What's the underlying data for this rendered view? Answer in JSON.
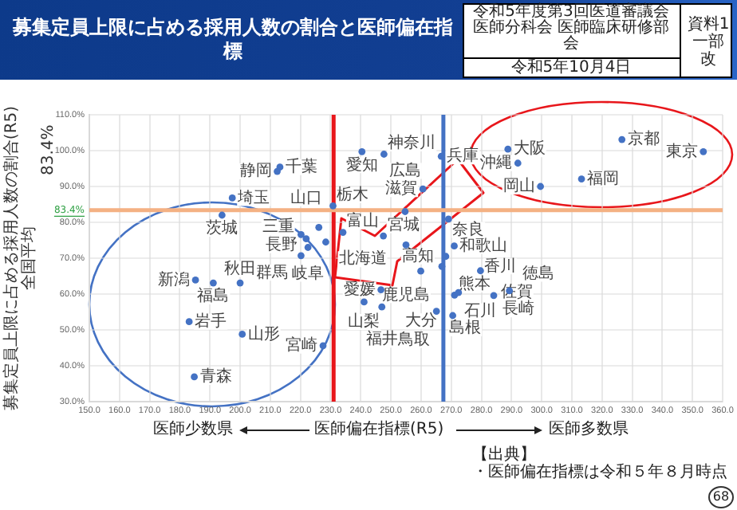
{
  "chart_data": {
    "type": "scatter",
    "title": "募集定員上限に占める採用人数の割合と医師偏在指標",
    "xlabel": "医師偏在指標(R5)",
    "ylabel": "募集定員上限に占める採用人数の割合(R5) 全国平均",
    "x": [
      213.2,
      212.3,
      197.4,
      194.0,
      230.8,
      226.1,
      220.2,
      222.5,
      221.9,
      228.4,
      234.1,
      220.2,
      240.4,
      247.7,
      266.7,
      288.8,
      326.6,
      353.6,
      292.1,
      313.2,
      299.6,
      260.6,
      247.5,
      254.7,
      269.1,
      255.0,
      271.0,
      268.2,
      266.9,
      259.9,
      279.7,
      246.7,
      241.1,
      247.0,
      265.1,
      270.5,
      271.1,
      272.4,
      284.1,
      289.3,
      185.2,
      191.1,
      200.0,
      183.1,
      200.7,
      227.5,
      184.8
    ],
    "series": [
      {
        "color": "#4472c4",
        "values": [
          95.4,
          94.2,
          86.8,
          82.0,
          84.6,
          78.6,
          76.6,
          73.0,
          75.4,
          74.5,
          77.2,
          70.7,
          99.7,
          99.0,
          98.4,
          100.4,
          103.1,
          99.7,
          96.5,
          92.1,
          90.0,
          89.3,
          76.2,
          83.0,
          80.9,
          73.7,
          73.4,
          70.5,
          67.7,
          66.4,
          66.5,
          61.2,
          57.8,
          56.4,
          55.2,
          54.0,
          59.7,
          60.4,
          59.6,
          60.9,
          63.9,
          63.1,
          63.1,
          52.3,
          48.8,
          45.6,
          36.9
        ]
      }
    ],
    "xlim": [
      150,
      360
    ],
    "ylim": [
      30,
      110
    ],
    "xticks": [
      {
        "value": 150,
        "label": "150.0"
      },
      {
        "value": 160,
        "label": "160.0"
      },
      {
        "value": 170,
        "label": "170.0"
      },
      {
        "value": 180,
        "label": "180.0"
      },
      {
        "value": 190,
        "label": "190.0"
      },
      {
        "value": 200,
        "label": "200.0"
      },
      {
        "value": 210,
        "label": "210.0"
      },
      {
        "value": 220,
        "label": "220.0"
      },
      {
        "value": 230,
        "label": "230.0"
      },
      {
        "value": 240,
        "label": "240.0"
      },
      {
        "value": 250,
        "label": "250.0"
      },
      {
        "value": 260,
        "label": "260.0"
      },
      {
        "value": 270,
        "label": "270.0"
      },
      {
        "value": 280,
        "label": "280.0"
      },
      {
        "value": 290,
        "label": "290.0"
      },
      {
        "value": 300,
        "label": "300.0"
      },
      {
        "value": 310,
        "label": "310.0"
      },
      {
        "value": 320,
        "label": "320.0"
      },
      {
        "value": 330,
        "label": "330.0"
      },
      {
        "value": 340,
        "label": "340.0"
      },
      {
        "value": 350,
        "label": "350.0"
      },
      {
        "value": 360,
        "label": "360.0"
      }
    ],
    "yticks": [
      {
        "value": 30,
        "label": "30.0%"
      },
      {
        "value": 40,
        "label": "40.0%"
      },
      {
        "value": 50,
        "label": "50.0%"
      },
      {
        "value": 60,
        "label": "60.0%"
      },
      {
        "value": 70,
        "label": "70.0%"
      },
      {
        "value": 80,
        "label": "80.0%"
      },
      {
        "value": 90,
        "label": "90.0%"
      },
      {
        "value": 100,
        "label": "100.0%"
      },
      {
        "value": 110,
        "label": "110.0%"
      }
    ],
    "grid": true,
    "marker": "circle",
    "legend": false,
    "ref_lines": [
      {
        "axis": "x",
        "value": 231,
        "color": "#e8161b"
      },
      {
        "axis": "x",
        "value": 267.4,
        "color": "#4472c4"
      },
      {
        "axis": "y",
        "value": 83.4,
        "label": "83.4%",
        "color": "#f4b183"
      }
    ],
    "annotations": [
      "令和5年度第3回医道審議会医師分科会 医師臨床研修部会",
      "令和5年10月4日",
      "資料1 一部改",
      "83.4%",
      "医師少数県",
      "医師多数県",
      "【出典】",
      "・医師偏在指標は令和５年８月時点",
      "68",
      {
        "text": "千葉",
        "x": 213.2,
        "y": 95.4
      },
      {
        "text": "静岡",
        "x": 212.3,
        "y": 94.2
      },
      {
        "text": "埼玉",
        "x": 197.4,
        "y": 86.8
      },
      {
        "text": "茨城",
        "x": 194.0,
        "y": 82.0
      },
      {
        "text": "栃木",
        "x": 230.8,
        "y": 84.6
      },
      {
        "text": "三重",
        "x": 226.1,
        "y": 78.6
      },
      {
        "text": "長野",
        "x": 220.2,
        "y": 76.6
      },
      {
        "text": "岐阜",
        "x": 222.5,
        "y": 73.0
      },
      {
        "text": "山口",
        "x": 221.9,
        "y": 75.4
      },
      {
        "text": "北海道",
        "x": 228.4,
        "y": 74.5
      },
      {
        "text": "富山",
        "x": 234.1,
        "y": 77.2
      },
      {
        "text": "群馬",
        "x": 220.2,
        "y": 70.7
      },
      {
        "text": "愛知",
        "x": 240.4,
        "y": 99.7
      },
      {
        "text": "神奈川",
        "x": 247.7,
        "y": 99.0
      },
      {
        "text": "兵庫",
        "x": 266.7,
        "y": 98.4
      },
      {
        "text": "大阪",
        "x": 288.8,
        "y": 100.4
      },
      {
        "text": "京都",
        "x": 326.6,
        "y": 103.1
      },
      {
        "text": "東京",
        "x": 353.6,
        "y": 99.7
      },
      {
        "text": "沖縄",
        "x": 292.1,
        "y": 96.5
      },
      {
        "text": "福岡",
        "x": 313.2,
        "y": 92.1
      },
      {
        "text": "岡山",
        "x": 299.6,
        "y": 90.0
      },
      {
        "text": "滋賀",
        "x": 260.6,
        "y": 89.3
      },
      {
        "text": "宮城",
        "x": 247.5,
        "y": 76.2
      },
      {
        "text": "広島",
        "x": 254.7,
        "y": 83.0
      },
      {
        "text": "奈良",
        "x": 269.1,
        "y": 80.9
      },
      {
        "text": "鹿児島",
        "x": 255.0,
        "y": 73.7
      },
      {
        "text": "和歌山",
        "x": 271.0,
        "y": 73.4
      },
      {
        "text": "高知",
        "x": 268.2,
        "y": 70.5
      },
      {
        "text": "香川",
        "x": 266.9,
        "y": 67.7
      },
      {
        "text": "大分",
        "x": 259.9,
        "y": 66.4
      },
      {
        "text": "石川",
        "x": 279.7,
        "y": 66.5
      },
      {
        "text": "愛媛",
        "x": 246.7,
        "y": 61.2
      },
      {
        "text": "山梨",
        "x": 241.1,
        "y": 57.8
      },
      {
        "text": "福井",
        "x": 247.0,
        "y": 56.4
      },
      {
        "text": "島根",
        "x": 265.1,
        "y": 55.2
      },
      {
        "text": "鳥取",
        "x": 270.5,
        "y": 54.0
      },
      {
        "text": "熊本",
        "x": 271.1,
        "y": 59.7
      },
      {
        "text": "佐賀",
        "x": 272.4,
        "y": 60.4
      },
      {
        "text": "長崎",
        "x": 284.1,
        "y": 59.6
      },
      {
        "text": "徳島",
        "x": 289.3,
        "y": 60.9
      },
      {
        "text": "新潟",
        "x": 185.2,
        "y": 63.9
      },
      {
        "text": "福島",
        "x": 191.1,
        "y": 63.1
      },
      {
        "text": "秋田",
        "x": 200.0,
        "y": 63.1
      },
      {
        "text": "岩手",
        "x": 183.1,
        "y": 52.3
      },
      {
        "text": "山形",
        "x": 200.7,
        "y": 48.8
      },
      {
        "text": "宮崎",
        "x": 227.5,
        "y": 45.6
      },
      {
        "text": "青森",
        "x": 184.8,
        "y": 36.9
      }
    ]
  }
}
